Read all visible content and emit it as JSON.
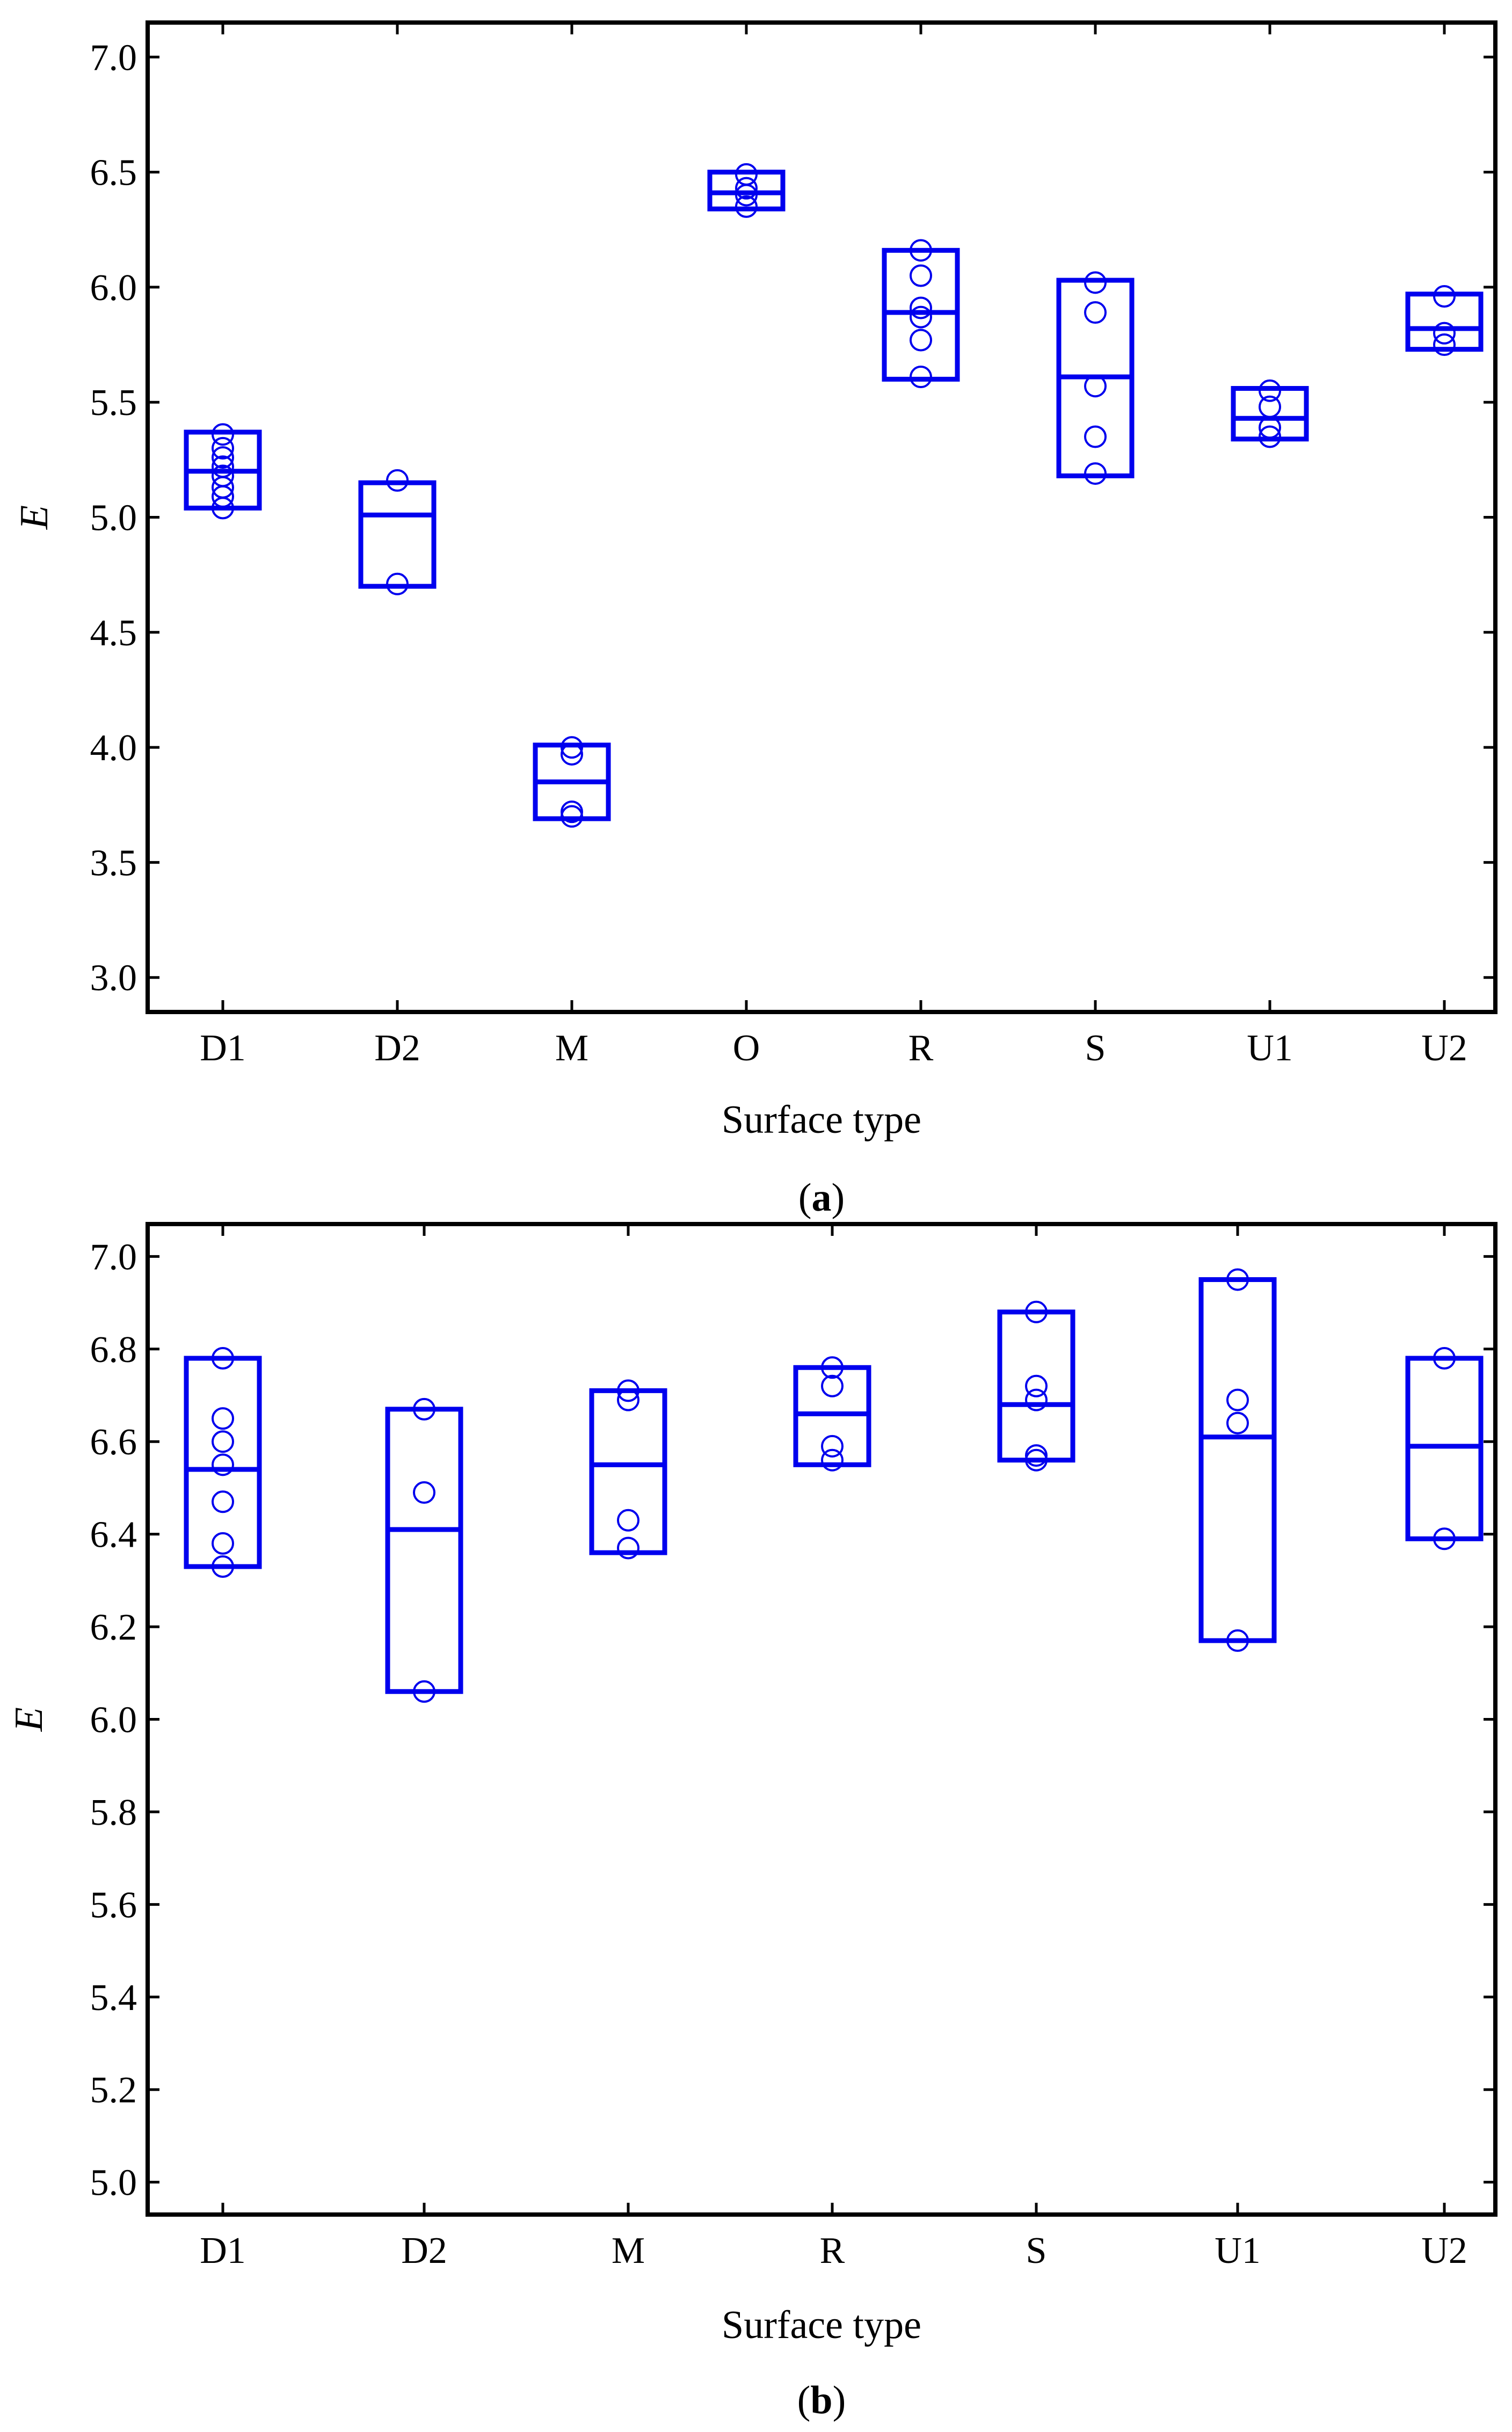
{
  "colors": {
    "series": "#0000ee",
    "axes": "#000000"
  },
  "chart_data": [
    {
      "type": "box",
      "panel_label": "a",
      "xlabel": "Surface type",
      "ylabel": "E",
      "ylim": [
        2.85,
        7.15
      ],
      "yticks": [
        3.0,
        3.5,
        4.0,
        4.5,
        5.0,
        5.5,
        6.0,
        6.5,
        7.0
      ],
      "ytick_labels": [
        "3.0",
        "3.5",
        "4.0",
        "4.5",
        "5.0",
        "5.5",
        "6.0",
        "6.5",
        "7.0"
      ],
      "categories": [
        "D1",
        "D2",
        "M",
        "O",
        "R",
        "S",
        "U1",
        "U2"
      ],
      "boxes": [
        {
          "low": 5.04,
          "median": 5.2,
          "high": 5.37,
          "points": [
            5.04,
            5.09,
            5.13,
            5.18,
            5.22,
            5.26,
            5.3,
            5.36
          ]
        },
        {
          "low": 4.7,
          "median": 5.01,
          "high": 5.15,
          "points": [
            4.71,
            5.16
          ]
        },
        {
          "low": 3.69,
          "median": 3.85,
          "high": 4.01,
          "points": [
            3.7,
            3.72,
            3.97,
            4.0
          ]
        },
        {
          "low": 6.34,
          "median": 6.41,
          "high": 6.5,
          "points": [
            6.35,
            6.4,
            6.43,
            6.49
          ]
        },
        {
          "low": 5.6,
          "median": 5.89,
          "high": 6.16,
          "points": [
            5.61,
            5.77,
            5.87,
            5.91,
            6.05,
            6.16
          ]
        },
        {
          "low": 5.18,
          "median": 5.61,
          "high": 6.03,
          "points": [
            5.19,
            5.35,
            5.57,
            5.89,
            6.02
          ]
        },
        {
          "low": 5.34,
          "median": 5.43,
          "high": 5.56,
          "points": [
            5.35,
            5.39,
            5.48,
            5.55
          ]
        },
        {
          "low": 5.73,
          "median": 5.82,
          "high": 5.97,
          "points": [
            5.75,
            5.8,
            5.96
          ]
        }
      ]
    },
    {
      "type": "box",
      "panel_label": "b",
      "xlabel": "Surface type",
      "ylabel": "E",
      "ylim": [
        4.93,
        7.07
      ],
      "yticks": [
        5.0,
        5.2,
        5.4,
        5.6,
        5.8,
        6.0,
        6.2,
        6.4,
        6.6,
        6.8,
        7.0
      ],
      "ytick_labels": [
        "5.0",
        "5.2",
        "5.4",
        "5.6",
        "5.8",
        "6.0",
        "6.2",
        "6.4",
        "6.6",
        "6.8",
        "7.0"
      ],
      "categories": [
        "D1",
        "D2",
        "M",
        "R",
        "S",
        "U1",
        "U2"
      ],
      "boxes": [
        {
          "low": 6.33,
          "median": 6.54,
          "high": 6.78,
          "points": [
            6.33,
            6.38,
            6.47,
            6.55,
            6.6,
            6.65,
            6.78
          ]
        },
        {
          "low": 6.06,
          "median": 6.41,
          "high": 6.67,
          "points": [
            6.06,
            6.49,
            6.67
          ]
        },
        {
          "low": 6.36,
          "median": 6.55,
          "high": 6.71,
          "points": [
            6.37,
            6.43,
            6.69,
            6.71
          ]
        },
        {
          "low": 6.55,
          "median": 6.66,
          "high": 6.76,
          "points": [
            6.56,
            6.59,
            6.72,
            6.76
          ]
        },
        {
          "low": 6.56,
          "median": 6.68,
          "high": 6.88,
          "points": [
            6.56,
            6.57,
            6.69,
            6.72,
            6.88
          ]
        },
        {
          "low": 6.17,
          "median": 6.61,
          "high": 6.95,
          "points": [
            6.17,
            6.64,
            6.69,
            6.95
          ]
        },
        {
          "low": 6.39,
          "median": 6.59,
          "high": 6.78,
          "points": [
            6.39,
            6.78
          ]
        }
      ]
    }
  ]
}
